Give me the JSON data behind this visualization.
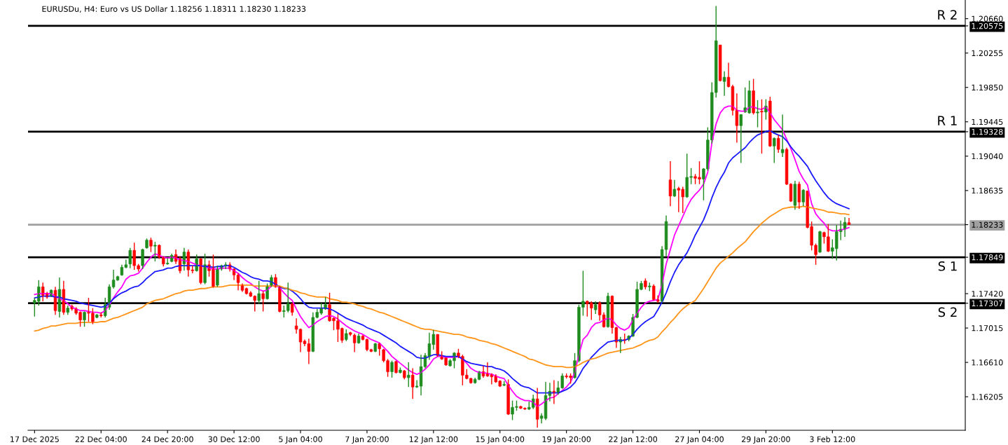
{
  "chart_data": {
    "type": "candlestick",
    "title": "EURUSDu, H4: Euro vs US Dollar 1.18256 1.18311 1.18230 1.18233",
    "categories": [
      "17 Dec 2025",
      null,
      null,
      null,
      null,
      null,
      null,
      null,
      null,
      null,
      null,
      null,
      null,
      null,
      null,
      null,
      "22 Dec 04:00",
      null,
      null,
      null,
      null,
      null,
      null,
      null,
      null,
      null,
      null,
      null,
      null,
      null,
      null,
      null,
      "24 Dec 20:00",
      null,
      null,
      null,
      null,
      null,
      null,
      null,
      null,
      null,
      null,
      null,
      null,
      null,
      null,
      null,
      "30 Dec 12:00",
      null,
      null,
      null,
      null,
      null,
      null,
      null,
      null,
      null,
      null,
      null,
      null,
      null,
      null,
      null,
      "5 Jan 04:00",
      null,
      null,
      null,
      null,
      null,
      null,
      null,
      null,
      null,
      null,
      null,
      null,
      null,
      null,
      null,
      "7 Jan 20:00",
      null,
      null,
      null,
      null,
      null,
      null,
      null,
      null,
      null,
      null,
      null,
      null,
      null,
      null,
      null,
      "12 Jan 12:00",
      null,
      null,
      null,
      null,
      null,
      null,
      null,
      null,
      null,
      null,
      null,
      null,
      null,
      null,
      null,
      "15 Jan 04:00",
      null,
      null,
      null,
      null,
      null,
      null,
      null,
      null,
      null,
      null,
      null,
      null,
      null,
      null,
      null,
      "19 Jan 20:00",
      null,
      null,
      null,
      null,
      null,
      null,
      null,
      null,
      null,
      null,
      null,
      null,
      null,
      null,
      null,
      "22 Jan 12:00",
      null,
      null,
      null,
      null,
      null,
      null,
      null,
      null,
      null,
      null,
      null,
      null,
      null,
      null,
      null,
      "27 Jan 04:00",
      null,
      null,
      null,
      null,
      null,
      null,
      null,
      null,
      null,
      null,
      null,
      null,
      null,
      null,
      null,
      "29 Jan 20:00",
      null,
      null,
      null,
      null,
      null,
      null,
      null,
      null,
      null,
      null,
      null,
      null,
      null,
      null,
      null,
      "3 Feb 12:00",
      null,
      null,
      null,
      null
    ],
    "ohlc": [
      [
        1.1731,
        1.1737,
        1.1715,
        1.1734
      ],
      [
        1.1733,
        1.1758,
        1.1728,
        1.175
      ],
      [
        1.175,
        1.1755,
        1.1733,
        1.174
      ],
      [
        1.1742,
        1.1744,
        1.1736,
        1.1738
      ],
      [
        1.1739,
        1.1747,
        1.1738,
        1.1746
      ],
      [
        1.1746,
        1.175,
        1.1717,
        1.1722
      ],
      [
        1.1721,
        1.1761,
        1.1714,
        1.1747
      ],
      [
        1.1747,
        1.1757,
        1.1717,
        1.172
      ],
      [
        1.172,
        1.1728,
        1.1717,
        1.1725
      ],
      [
        1.1727,
        1.1729,
        1.1722,
        1.1724
      ],
      [
        1.1724,
        1.1726,
        1.1717,
        1.1719
      ],
      [
        1.172,
        1.1721,
        1.1703,
        1.1711
      ],
      [
        1.1711,
        1.1721,
        1.1703,
        1.172
      ],
      [
        1.172,
        1.1737,
        1.1709,
        1.1719
      ],
      [
        1.1719,
        1.1725,
        1.1706,
        1.1709
      ],
      [
        1.1714,
        1.1718,
        1.1713,
        1.1717
      ],
      [
        1.1717,
        1.172,
        1.1714,
        1.1716
      ],
      [
        1.1716,
        1.1737,
        1.1714,
        1.1729
      ],
      [
        1.1726,
        1.1753,
        1.1723,
        1.175
      ],
      [
        1.175,
        1.177,
        1.1748,
        1.1758
      ],
      [
        1.1758,
        1.1763,
        1.1757,
        1.1762
      ],
      [
        1.1764,
        1.1776,
        1.1763,
        1.1773
      ],
      [
        1.1773,
        1.1782,
        1.1772,
        1.1776
      ],
      [
        1.1777,
        1.1796,
        1.1772,
        1.1793
      ],
      [
        1.1793,
        1.1802,
        1.177,
        1.1775
      ],
      [
        1.1775,
        1.1777,
        1.1768,
        1.1771
      ],
      [
        1.1775,
        1.1795,
        1.1771,
        1.1794
      ],
      [
        1.1796,
        1.1807,
        1.1795,
        1.1805
      ],
      [
        1.1805,
        1.1808,
        1.1791,
        1.1798
      ],
      [
        1.1798,
        1.1803,
        1.178,
        1.1799
      ],
      [
        1.1799,
        1.18,
        1.1783,
        1.1785
      ],
      [
        1.1785,
        1.1786,
        1.1774,
        1.1777
      ],
      [
        1.1777,
        1.1784,
        1.1776,
        1.1778
      ],
      [
        1.178,
        1.1789,
        1.1779,
        1.1787
      ],
      [
        1.1788,
        1.1794,
        1.1777,
        1.178
      ],
      [
        1.1783,
        1.1786,
        1.1766,
        1.1769
      ],
      [
        1.1777,
        1.1796,
        1.1769,
        1.1791
      ],
      [
        1.1791,
        1.1794,
        1.1762,
        1.177
      ],
      [
        1.177,
        1.1775,
        1.1766,
        1.1769
      ],
      [
        1.1769,
        1.1788,
        1.1768,
        1.1783
      ],
      [
        1.1783,
        1.1784,
        1.1753,
        1.1755
      ],
      [
        1.1755,
        1.1789,
        1.1753,
        1.1776
      ],
      [
        1.1776,
        1.1781,
        1.1762,
        1.1769
      ],
      [
        1.1772,
        1.1788,
        1.1749,
        1.175
      ],
      [
        1.1752,
        1.1775,
        1.175,
        1.1771
      ],
      [
        1.1771,
        1.1776,
        1.1769,
        1.1775
      ],
      [
        1.1775,
        1.1779,
        1.1771,
        1.1776
      ],
      [
        1.1776,
        1.1779,
        1.1768,
        1.1771
      ],
      [
        1.1771,
        1.1772,
        1.1758,
        1.1764
      ],
      [
        1.1764,
        1.1766,
        1.1746,
        1.1755
      ],
      [
        1.1752,
        1.1754,
        1.1744,
        1.1746
      ],
      [
        1.1748,
        1.1749,
        1.1741,
        1.1742
      ],
      [
        1.1743,
        1.1745,
        1.1738,
        1.1739
      ],
      [
        1.1739,
        1.174,
        1.1721,
        1.1734
      ],
      [
        1.1734,
        1.1757,
        1.173,
        1.1742
      ],
      [
        1.1742,
        1.1745,
        1.1721,
        1.1736
      ],
      [
        1.1736,
        1.1754,
        1.1735,
        1.1751
      ],
      [
        1.1751,
        1.1764,
        1.175,
        1.1761
      ],
      [
        1.1761,
        1.1765,
        1.1749,
        1.175
      ],
      [
        1.175,
        1.1751,
        1.172,
        1.1721
      ],
      [
        1.1721,
        1.1728,
        1.1714,
        1.1722
      ],
      [
        1.1722,
        1.1755,
        1.172,
        1.173
      ],
      [
        1.173,
        1.1731,
        1.1716,
        1.172
      ],
      [
        1.1704,
        1.1713,
        1.1695,
        1.17
      ],
      [
        1.17,
        1.1701,
        1.1673,
        1.1685
      ],
      [
        1.1686,
        1.1688,
        1.168,
        1.1683
      ],
      [
        1.1683,
        1.1689,
        1.1659,
        1.1674
      ],
      [
        1.1674,
        1.172,
        1.1673,
        1.1714
      ],
      [
        1.1714,
        1.1724,
        1.1713,
        1.172
      ],
      [
        1.1719,
        1.1731,
        1.1717,
        1.1725
      ],
      [
        1.1724,
        1.1738,
        1.1723,
        1.1729
      ],
      [
        1.1729,
        1.1743,
        1.1709,
        1.171
      ],
      [
        1.1713,
        1.1714,
        1.1699,
        1.171
      ],
      [
        1.171,
        1.1718,
        1.1685,
        1.17
      ],
      [
        1.1701,
        1.1702,
        1.1684,
        1.1687
      ],
      [
        1.1688,
        1.17,
        1.1686,
        1.1695
      ],
      [
        1.1696,
        1.1697,
        1.1692,
        1.1694
      ],
      [
        1.1693,
        1.1695,
        1.1673,
        1.1684
      ],
      [
        1.1684,
        1.1695,
        1.1683,
        1.1692
      ],
      [
        1.1692,
        1.1693,
        1.1687,
        1.1688
      ],
      [
        1.1688,
        1.1689,
        1.1674,
        1.1676
      ],
      [
        1.1676,
        1.1677,
        1.1673,
        1.1674
      ],
      [
        1.1674,
        1.1684,
        1.1673,
        1.1683
      ],
      [
        1.1683,
        1.1684,
        1.1669,
        1.1677
      ],
      [
        1.1676,
        1.1677,
        1.1661,
        1.1663
      ],
      [
        1.1663,
        1.1665,
        1.1644,
        1.165
      ],
      [
        1.165,
        1.1663,
        1.1643,
        1.1661
      ],
      [
        1.1662,
        1.1663,
        1.1648,
        1.1649
      ],
      [
        1.1649,
        1.1655,
        1.1648,
        1.1652
      ],
      [
        1.1651,
        1.1652,
        1.1641,
        1.1643
      ],
      [
        1.1643,
        1.1661,
        1.1632,
        1.1646
      ],
      [
        1.1646,
        1.1654,
        1.1618,
        1.1632
      ],
      [
        1.1632,
        1.164,
        1.1631,
        1.1633
      ],
      [
        1.1633,
        1.167,
        1.1622,
        1.1656
      ],
      [
        1.1656,
        1.1672,
        1.1654,
        1.1669
      ],
      [
        1.1668,
        1.1696,
        1.1664,
        1.1683
      ],
      [
        1.1682,
        1.1699,
        1.1676,
        1.1694
      ],
      [
        1.1694,
        1.1694,
        1.1668,
        1.1669
      ],
      [
        1.1669,
        1.1674,
        1.1664,
        1.1665
      ],
      [
        1.1667,
        1.1667,
        1.1657,
        1.1658
      ],
      [
        1.1657,
        1.1665,
        1.1656,
        1.1663
      ],
      [
        1.1663,
        1.1673,
        1.1654,
        1.1672
      ],
      [
        1.1672,
        1.1677,
        1.1666,
        1.1668
      ],
      [
        1.1668,
        1.167,
        1.1634,
        1.1646
      ],
      [
        1.1646,
        1.1653,
        1.1641,
        1.1642
      ],
      [
        1.1642,
        1.1643,
        1.1636,
        1.1637
      ],
      [
        1.1637,
        1.1643,
        1.1636,
        1.1641
      ],
      [
        1.1641,
        1.1651,
        1.164,
        1.165
      ],
      [
        1.165,
        1.1657,
        1.1643,
        1.1645
      ],
      [
        1.1648,
        1.1661,
        1.1644,
        1.1645
      ],
      [
        1.1647,
        1.1648,
        1.1635,
        1.1644
      ],
      [
        1.1645,
        1.1647,
        1.1637,
        1.1638
      ],
      [
        1.1639,
        1.164,
        1.1632,
        1.1633
      ],
      [
        1.1634,
        1.1639,
        1.1633,
        1.1635
      ],
      [
        1.1635,
        1.1641,
        1.1599,
        1.16
      ],
      [
        1.16,
        1.1616,
        1.1593,
        1.1608
      ],
      [
        1.1608,
        1.1616,
        1.1604,
        1.1609
      ],
      [
        1.1609,
        1.161,
        1.1606,
        1.1607
      ],
      [
        1.1607,
        1.1608,
        1.1605,
        1.1606
      ],
      [
        1.1606,
        1.1615,
        1.1605,
        1.1608
      ],
      [
        1.1608,
        1.1623,
        1.1606,
        1.1618
      ],
      [
        1.1618,
        1.1631,
        1.1584,
        1.1594
      ],
      [
        1.1595,
        1.1601,
        1.1589,
        1.1598
      ],
      [
        1.1595,
        1.1638,
        1.1593,
        1.1622
      ],
      [
        1.1622,
        1.1637,
        1.1615,
        1.1627
      ],
      [
        1.1627,
        1.164,
        1.1612,
        1.1625
      ],
      [
        1.1625,
        1.1639,
        1.1623,
        1.1631
      ],
      [
        1.1631,
        1.1648,
        1.163,
        1.1645
      ],
      [
        1.1645,
        1.1648,
        1.1642,
        1.1644
      ],
      [
        1.1645,
        1.1648,
        1.1636,
        1.1643
      ],
      [
        1.1643,
        1.1672,
        1.1642,
        1.1663
      ],
      [
        1.1663,
        1.1729,
        1.1661,
        1.1726
      ],
      [
        1.1726,
        1.1769,
        1.1716,
        1.1733
      ],
      [
        1.1733,
        1.1734,
        1.1715,
        1.173
      ],
      [
        1.1731,
        1.1733,
        1.1711,
        1.1725
      ],
      [
        1.1723,
        1.1733,
        1.1718,
        1.1729
      ],
      [
        1.1731,
        1.1733,
        1.171,
        1.1717
      ],
      [
        1.1717,
        1.172,
        1.1702,
        1.1703
      ],
      [
        1.1703,
        1.1743,
        1.1702,
        1.1739
      ],
      [
        1.1739,
        1.174,
        1.1695,
        1.1702
      ],
      [
        1.1702,
        1.1703,
        1.1678,
        1.1685
      ],
      [
        1.1685,
        1.1691,
        1.1672,
        1.1688
      ],
      [
        1.1688,
        1.1695,
        1.1683,
        1.1687
      ],
      [
        1.1688,
        1.1693,
        1.1686,
        1.1692
      ],
      [
        1.1692,
        1.1718,
        1.1691,
        1.1714
      ],
      [
        1.1714,
        1.1756,
        1.1713,
        1.1747
      ],
      [
        1.1747,
        1.1757,
        1.1746,
        1.1754
      ],
      [
        1.1757,
        1.176,
        1.1747,
        1.175
      ],
      [
        1.175,
        1.1755,
        1.1745,
        1.1751
      ],
      [
        1.1751,
        1.1753,
        1.1734,
        1.1735
      ],
      [
        1.1735,
        1.174,
        1.1731,
        1.1733
      ],
      [
        1.1733,
        1.1798,
        1.1732,
        1.1794
      ],
      [
        1.1794,
        1.1834,
        1.1786,
        1.1827
      ],
      [
        1.1876,
        1.1898,
        1.1845,
        1.1857
      ],
      [
        1.1857,
        1.1876,
        1.1856,
        1.1865
      ],
      [
        1.1866,
        1.1868,
        1.1838,
        1.1864
      ],
      [
        1.1865,
        1.1868,
        1.1837,
        1.1856
      ],
      [
        1.1856,
        1.1907,
        1.1855,
        1.1879
      ],
      [
        1.1879,
        1.189,
        1.1871,
        1.188
      ],
      [
        1.188,
        1.1883,
        1.1871,
        1.1878
      ],
      [
        1.1879,
        1.1898,
        1.1871,
        1.1877
      ],
      [
        1.1877,
        1.189,
        1.1852,
        1.1889
      ],
      [
        1.1889,
        1.1938,
        1.1887,
        1.1923
      ],
      [
        1.1923,
        1.1991,
        1.1919,
        1.1979
      ],
      [
        1.1979,
        1.2081,
        1.1973,
        1.204
      ],
      [
        1.2035,
        1.2035,
        1.1992,
        1.1993
      ],
      [
        1.1992,
        1.2004,
        1.1975,
        1.1997
      ],
      [
        1.1997,
        1.2014,
        1.1985,
        1.1986
      ],
      [
        1.1986,
        1.1988,
        1.1952,
        1.1958
      ],
      [
        1.1958,
        1.1978,
        1.192,
        1.194
      ],
      [
        1.194,
        1.1953,
        1.1896,
        1.1953
      ],
      [
        1.1956,
        1.1985,
        1.1955,
        1.1961
      ],
      [
        1.1955,
        1.1993,
        1.1954,
        1.1981
      ],
      [
        1.1981,
        1.1995,
        1.1953,
        1.1955
      ],
      [
        1.1955,
        1.197,
        1.1938,
        1.1956
      ],
      [
        1.1957,
        1.1971,
        1.1907,
        1.1956
      ],
      [
        1.1956,
        1.1971,
        1.1947,
        1.1963
      ],
      [
        1.1969,
        1.1974,
        1.1915,
        1.1916
      ],
      [
        1.1916,
        1.1926,
        1.1896,
        1.1925
      ],
      [
        1.1925,
        1.1929,
        1.1908,
        1.1912
      ],
      [
        1.1908,
        1.1953,
        1.1903,
        1.1912
      ],
      [
        1.1912,
        1.1914,
        1.187,
        1.1871
      ],
      [
        1.1871,
        1.1872,
        1.185,
        1.1851
      ],
      [
        1.1846,
        1.1875,
        1.1841,
        1.1871
      ],
      [
        1.1871,
        1.1874,
        1.1842,
        1.185
      ],
      [
        1.185,
        1.1865,
        1.1845,
        1.1864
      ],
      [
        1.1863,
        1.1863,
        1.1819,
        1.182
      ],
      [
        1.1821,
        1.1827,
        1.1793,
        1.1799
      ],
      [
        1.1799,
        1.1801,
        1.1776,
        1.1788
      ],
      [
        1.1791,
        1.1816,
        1.179,
        1.1815
      ],
      [
        1.1814,
        1.1815,
        1.1801,
        1.1809
      ],
      [
        1.1809,
        1.1824,
        1.1791,
        1.1792
      ],
      [
        1.1792,
        1.1806,
        1.1783,
        1.1796
      ],
      [
        1.1795,
        1.1823,
        1.1781,
        1.1815
      ],
      [
        1.1815,
        1.1828,
        1.1805,
        1.1818
      ],
      [
        1.1818,
        1.1832,
        1.1809,
        1.1826
      ],
      [
        1.18256,
        1.18311,
        1.1823,
        1.18233
      ]
    ],
    "colors": [
      "#1e8c1e",
      "#1e8c1e",
      "#ff0000",
      "#ff0000",
      "#1e8c1e",
      "#ff0000",
      "#1e8c1e",
      "#ff0000",
      "#1e8c1e",
      "#ff0000",
      "#ff0000",
      "#ff0000",
      "#1e8c1e",
      "#ff0000",
      "#ff0000",
      "#1e8c1e",
      "#ff0000",
      "#1e8c1e",
      "#1e8c1e",
      "#1e8c1e",
      "#1e8c1e",
      "#1e8c1e",
      "#1e8c1e",
      "#1e8c1e",
      "#ff0000",
      "#ff0000",
      "#1e8c1e",
      "#1e8c1e",
      "#ff0000",
      "#1e8c1e",
      "#ff0000",
      "#ff0000",
      "#1e8c1e",
      "#1e8c1e",
      "#ff0000",
      "#ff0000",
      "#1e8c1e",
      "#ff0000",
      "#ff0000",
      "#1e8c1e",
      "#ff0000",
      "#1e8c1e",
      "#ff0000",
      "#ff0000",
      "#1e8c1e",
      "#1e8c1e",
      "#1e8c1e",
      "#ff0000",
      "#ff0000",
      "#ff0000",
      "#ff0000",
      "#ff0000",
      "#ff0000",
      "#ff0000",
      "#1e8c1e",
      "#ff0000",
      "#1e8c1e",
      "#1e8c1e",
      "#ff0000",
      "#ff0000",
      "#1e8c1e",
      "#1e8c1e",
      "#ff0000",
      "#ff0000",
      "#ff0000",
      "#ff0000",
      "#ff0000",
      "#1e8c1e",
      "#1e8c1e",
      "#1e8c1e",
      "#1e8c1e",
      "#ff0000",
      "#ff0000",
      "#ff0000",
      "#ff0000",
      "#1e8c1e",
      "#ff0000",
      "#ff0000",
      "#1e8c1e",
      "#ff0000",
      "#ff0000",
      "#ff0000",
      "#1e8c1e",
      "#ff0000",
      "#ff0000",
      "#ff0000",
      "#1e8c1e",
      "#ff0000",
      "#1e8c1e",
      "#ff0000",
      "#1e8c1e",
      "#ff0000",
      "#1e8c1e",
      "#1e8c1e",
      "#1e8c1e",
      "#1e8c1e",
      "#1e8c1e",
      "#ff0000",
      "#ff0000",
      "#ff0000",
      "#1e8c1e",
      "#1e8c1e",
      "#ff0000",
      "#ff0000",
      "#ff0000",
      "#ff0000",
      "#1e8c1e",
      "#1e8c1e",
      "#ff0000",
      "#ff0000",
      "#ff0000",
      "#ff0000",
      "#ff0000",
      "#1e8c1e",
      "#ff0000",
      "#1e8c1e",
      "#1e8c1e",
      "#ff0000",
      "#ff0000",
      "#1e8c1e",
      "#1e8c1e",
      "#ff0000",
      "#1e8c1e",
      "#1e8c1e",
      "#1e8c1e",
      "#ff0000",
      "#1e8c1e",
      "#1e8c1e",
      "#ff0000",
      "#ff0000",
      "#1e8c1e",
      "#1e8c1e",
      "#1e8c1e",
      "#ff0000",
      "#ff0000",
      "#1e8c1e",
      "#ff0000",
      "#ff0000",
      "#1e8c1e",
      "#ff0000",
      "#ff0000",
      "#1e8c1e",
      "#ff0000",
      "#1e8c1e",
      "#1e8c1e",
      "#1e8c1e",
      "#1e8c1e",
      "#ff0000",
      "#1e8c1e",
      "#ff0000",
      "#ff0000",
      "#1e8c1e",
      "#1e8c1e",
      "#ff0000",
      "#1e8c1e",
      "#ff0000",
      "#ff0000",
      "#1e8c1e",
      "#1e8c1e",
      "#ff0000",
      "#ff0000",
      "#1e8c1e",
      "#1e8c1e",
      "#1e8c1e",
      "#1e8c1e",
      "#ff0000",
      "#1e8c1e",
      "#ff0000",
      "#ff0000",
      "#ff0000",
      "#1e8c1e",
      "#1e8c1e",
      "#1e8c1e",
      "#ff0000",
      "#1e8c1e",
      "#ff0000",
      "#1e8c1e",
      "#ff0000",
      "#1e8c1e",
      "#ff0000",
      "#1e8c1e",
      "#ff0000",
      "#ff0000",
      "#1e8c1e",
      "#ff0000",
      "#1e8c1e",
      "#ff0000",
      "#ff0000",
      "#ff0000",
      "#1e8c1e",
      "#ff0000",
      "#ff0000",
      "#1e8c1e",
      "#1e8c1e",
      "#1e8c1e",
      "#1e8c1e",
      "#ff0000"
    ],
    "series": [
      {
        "type": "line",
        "color": "#ff00ff",
        "values": [
          1.1741,
          1.1742,
          1.1742,
          1.1742,
          1.1742,
          1.1739,
          1.1736,
          1.1734,
          1.173,
          1.1726,
          1.1724,
          1.1722,
          1.1722,
          1.1721,
          1.172,
          1.172,
          1.1719,
          1.1722,
          1.1729,
          1.1737,
          1.1744,
          1.175,
          1.1759,
          1.1763,
          1.1764,
          1.1766,
          1.1772,
          1.1779,
          1.1785,
          1.1789,
          1.1787,
          1.1785,
          1.1784,
          1.1785,
          1.1784,
          1.1782,
          1.1781,
          1.178,
          1.1778,
          1.1776,
          1.1775,
          1.1774,
          1.1772,
          1.1771,
          1.1771,
          1.1772,
          1.1772,
          1.1772,
          1.1769,
          1.1766,
          1.1761,
          1.1757,
          1.1754,
          1.175,
          1.1747,
          1.1745,
          1.1746,
          1.1751,
          1.1752,
          1.1749,
          1.1743,
          1.1738,
          1.1734,
          1.1724,
          1.1715,
          1.1708,
          1.1702,
          1.1705,
          1.1709,
          1.1712,
          1.1715,
          1.1716,
          1.1715,
          1.1712,
          1.1708,
          1.1704,
          1.1701,
          1.1698,
          1.1696,
          1.1694,
          1.1691,
          1.1688,
          1.1686,
          1.1684,
          1.1679,
          1.1674,
          1.1668,
          1.1664,
          1.166,
          1.1656,
          1.1652,
          1.1649,
          1.1647,
          1.1649,
          1.1653,
          1.1658,
          1.1665,
          1.1668,
          1.1668,
          1.1667,
          1.1667,
          1.1667,
          1.1668,
          1.1665,
          1.166,
          1.1654,
          1.1651,
          1.1649,
          1.1649,
          1.1648,
          1.1647,
          1.1645,
          1.1643,
          1.1642,
          1.1634,
          1.1627,
          1.1621,
          1.1618,
          1.1616,
          1.1616,
          1.1614,
          1.1609,
          1.1612,
          1.1616,
          1.1619,
          1.162,
          1.1624,
          1.1628,
          1.1632,
          1.1638,
          1.1649,
          1.167,
          1.1688,
          1.1693,
          1.1702,
          1.1707,
          1.1708,
          1.1711,
          1.1713,
          1.1711,
          1.1705,
          1.1701,
          1.1699,
          1.1702,
          1.1711,
          1.1719,
          1.1726,
          1.1731,
          1.1733,
          1.1734,
          1.1735,
          1.1753,
          1.1777,
          1.1794,
          1.1811,
          1.1822,
          1.1833,
          1.1844,
          1.1853,
          1.1859,
          1.1864,
          1.1871,
          1.1885,
          1.192,
          1.1942,
          1.1955,
          1.1961,
          1.1963,
          1.1963,
          1.1958,
          1.1957,
          1.1957,
          1.1962,
          1.1962,
          1.196,
          1.1959,
          1.1962,
          1.1955,
          1.1947,
          1.1941,
          1.1935,
          1.1924,
          1.1913,
          1.19,
          1.1886,
          1.1877,
          1.187,
          1.1848,
          1.1836,
          1.183,
          1.1825,
          1.1818,
          1.1816,
          1.1816,
          1.1817,
          1.1818,
          1.182
        ]
      },
      {
        "type": "line",
        "color": "#1a1aff",
        "values": [
          1.1737,
          1.1738,
          1.1739,
          1.1739,
          1.1739,
          1.1738,
          1.1738,
          1.1736,
          1.1735,
          1.1734,
          1.1733,
          1.1731,
          1.173,
          1.1729,
          1.1728,
          1.1727,
          1.1726,
          1.1727,
          1.1731,
          1.1736,
          1.174,
          1.1743,
          1.1745,
          1.1748,
          1.175,
          1.1751,
          1.1755,
          1.176,
          1.1764,
          1.1768,
          1.1769,
          1.177,
          1.1772,
          1.1772,
          1.1774,
          1.1775,
          1.1775,
          1.1775,
          1.1775,
          1.1775,
          1.1775,
          1.1774,
          1.1774,
          1.1773,
          1.1774,
          1.1774,
          1.1775,
          1.1775,
          1.1773,
          1.177,
          1.1767,
          1.1765,
          1.1762,
          1.176,
          1.1759,
          1.1757,
          1.1757,
          1.1756,
          1.1753,
          1.175,
          1.1748,
          1.1748,
          1.1745,
          1.1741,
          1.1736,
          1.173,
          1.1726,
          1.1725,
          1.1725,
          1.1725,
          1.1725,
          1.1724,
          1.1722,
          1.1719,
          1.1716,
          1.1713,
          1.1711,
          1.1709,
          1.1707,
          1.1705,
          1.1702,
          1.17,
          1.1698,
          1.1696,
          1.1693,
          1.169,
          1.1687,
          1.1684,
          1.168,
          1.1677,
          1.1674,
          1.1671,
          1.1667,
          1.1666,
          1.1666,
          1.1668,
          1.167,
          1.167,
          1.1669,
          1.1668,
          1.1668,
          1.1668,
          1.1668,
          1.1665,
          1.1662,
          1.166,
          1.1659,
          1.1658,
          1.1657,
          1.1656,
          1.1656,
          1.1654,
          1.1653,
          1.1651,
          1.1647,
          1.1642,
          1.1638,
          1.1634,
          1.1632,
          1.1631,
          1.1628,
          1.1625,
          1.1625,
          1.1625,
          1.1625,
          1.1625,
          1.1625,
          1.1627,
          1.1629,
          1.1632,
          1.1637,
          1.1645,
          1.1654,
          1.166,
          1.1667,
          1.1672,
          1.1677,
          1.1681,
          1.1685,
          1.1686,
          1.1687,
          1.1687,
          1.1687,
          1.1689,
          1.1694,
          1.17,
          1.1705,
          1.1709,
          1.1712,
          1.1715,
          1.1723,
          1.1732,
          1.1743,
          1.1756,
          1.1767,
          1.1776,
          1.1783,
          1.179,
          1.18,
          1.1811,
          1.182,
          1.1829,
          1.1841,
          1.1855,
          1.1867,
          1.1877,
          1.1885,
          1.1896,
          1.1902,
          1.1906,
          1.191,
          1.1914,
          1.192,
          1.1925,
          1.1929,
          1.1931,
          1.1933,
          1.1934,
          1.1931,
          1.1929,
          1.1927,
          1.1922,
          1.1915,
          1.1909,
          1.1904,
          1.1898,
          1.1892,
          1.1883,
          1.1875,
          1.1868,
          1.1861,
          1.1855,
          1.1851,
          1.1848,
          1.1846,
          1.1844,
          1.1842
        ]
      },
      {
        "type": "line",
        "color": "#ff9419",
        "values": [
          1.1698,
          1.1699,
          1.1701,
          1.1702,
          1.1704,
          1.1704,
          1.1705,
          1.1706,
          1.1707,
          1.1707,
          1.1707,
          1.1708,
          1.1708,
          1.1708,
          1.1708,
          1.1708,
          1.1709,
          1.1709,
          1.1711,
          1.1713,
          1.1714,
          1.1716,
          1.1718,
          1.172,
          1.1722,
          1.1724,
          1.1726,
          1.173,
          1.1732,
          1.1734,
          1.1735,
          1.1736,
          1.1738,
          1.174,
          1.1742,
          1.1743,
          1.1745,
          1.1746,
          1.1746,
          1.1747,
          1.1748,
          1.1748,
          1.1749,
          1.175,
          1.175,
          1.175,
          1.1751,
          1.1752,
          1.1752,
          1.1752,
          1.1752,
          1.1752,
          1.1752,
          1.1751,
          1.1751,
          1.1751,
          1.1751,
          1.1751,
          1.1751,
          1.1751,
          1.1749,
          1.1748,
          1.1746,
          1.1745,
          1.1743,
          1.1742,
          1.174,
          1.1739,
          1.1738,
          1.1738,
          1.1738,
          1.1736,
          1.1735,
          1.1734,
          1.1732,
          1.1732,
          1.1731,
          1.173,
          1.1728,
          1.1727,
          1.1725,
          1.1724,
          1.1722,
          1.172,
          1.1719,
          1.1717,
          1.1715,
          1.1713,
          1.1711,
          1.1709,
          1.1707,
          1.1705,
          1.1703,
          1.1701,
          1.17,
          1.17,
          1.1699,
          1.1698,
          1.1697,
          1.1696,
          1.1695,
          1.1694,
          1.1694,
          1.1693,
          1.1691,
          1.169,
          1.1689,
          1.1687,
          1.1686,
          1.1685,
          1.1683,
          1.1682,
          1.168,
          1.1678,
          1.1676,
          1.1674,
          1.1672,
          1.167,
          1.1668,
          1.1665,
          1.1664,
          1.1662,
          1.166,
          1.1658,
          1.1657,
          1.1656,
          1.1656,
          1.1656,
          1.1655,
          1.1655,
          1.1656,
          1.1658,
          1.1661,
          1.1663,
          1.1665,
          1.1666,
          1.1668,
          1.167,
          1.1672,
          1.1673,
          1.1674,
          1.1675,
          1.1676,
          1.1677,
          1.1678,
          1.168,
          1.1682,
          1.1685,
          1.1687,
          1.1688,
          1.1691,
          1.1697,
          1.1702,
          1.1708,
          1.1713,
          1.1719,
          1.1724,
          1.1728,
          1.1731,
          1.1734,
          1.1741,
          1.1748,
          1.1756,
          1.1764,
          1.1772,
          1.1778,
          1.1782,
          1.1786,
          1.179,
          1.1795,
          1.1799,
          1.1803,
          1.1809,
          1.1815,
          1.182,
          1.1825,
          1.1829,
          1.1833,
          1.1836,
          1.1839,
          1.1842,
          1.1843,
          1.1844,
          1.1844,
          1.1844,
          1.1845,
          1.1844,
          1.1843,
          1.1842,
          1.1841,
          1.184,
          1.1838,
          1.1838,
          1.1837,
          1.1836,
          1.1836,
          1.1835
        ]
      }
    ],
    "ylim": [
      1.1581,
      1.2088
    ],
    "yticks": [
      {
        "value": 1.16205,
        "label": "1.16205"
      },
      {
        "value": 1.1661,
        "label": "1.16610"
      },
      {
        "value": 1.17015,
        "label": "1.17015"
      },
      {
        "value": 1.17307,
        "label": "1.17307"
      },
      {
        "value": 1.1742,
        "label": "1.17420"
      },
      {
        "value": 1.17849,
        "label": "1.17849"
      },
      {
        "value": 1.18233,
        "label": "1.18233"
      },
      {
        "value": 1.18635,
        "label": "1.18635"
      },
      {
        "value": 1.1904,
        "label": "1.19040"
      },
      {
        "value": 1.19328,
        "label": "1.19328"
      },
      {
        "value": 1.19445,
        "label": "1.19445"
      },
      {
        "value": 1.1985,
        "label": "1.19850"
      },
      {
        "value": 1.20255,
        "label": "1.20255"
      },
      {
        "value": 1.20575,
        "label": "1.20575"
      },
      {
        "value": 1.2066,
        "label": "1.20660"
      }
    ],
    "ref_lines": [
      {
        "axis": "y",
        "value": 1.20575,
        "label": "R 2",
        "color": "#000000"
      },
      {
        "axis": "y",
        "value": 1.19328,
        "label": "R 1",
        "color": "#000000"
      },
      {
        "axis": "y",
        "value": 1.18233,
        "label": null,
        "color": "#a0a0a0"
      },
      {
        "axis": "y",
        "value": 1.17849,
        "label": "S 1",
        "color": "#000000"
      },
      {
        "axis": "y",
        "value": 1.17307,
        "label": "S 2",
        "color": "#000000"
      }
    ]
  }
}
